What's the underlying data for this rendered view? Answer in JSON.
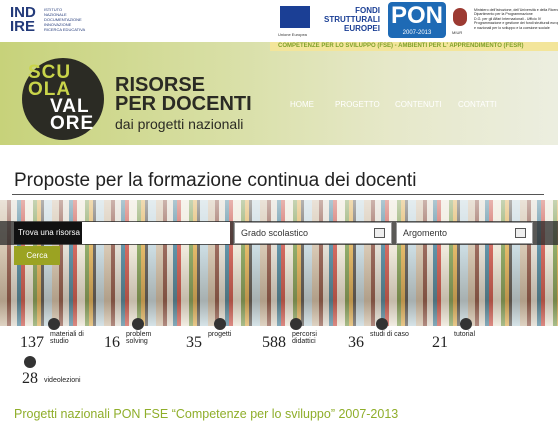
{
  "header": {
    "logo_top": "IND",
    "logo_bottom": "IRE",
    "institute_lines": [
      "ISTITUTO",
      "NAZIONALE",
      "DOCUMENTAZIONE",
      "INNOVAZIONE",
      "RICERCA EDUCATIVA"
    ],
    "eu_label": "Unione Europea",
    "fondi_lines": [
      "FONDI",
      "STRUTTURALI",
      "EUROPEI"
    ],
    "pon": "PON",
    "pon_years": "2007-2013",
    "miur": "MIUR",
    "ministry_lines": [
      "Ministero dell'Istruzione, dell'Università e della Ricerca",
      "Dipartimento per la Programmazione",
      "D.G. per gli Affari Internazionali - Ufficio IV",
      "Programmazione e gestione dei fondi strutturali europei",
      "e nazionali per lo sviluppo e la coesione sociale"
    ],
    "strip": "COMPETENZE PER LO SVILUPPO (FSE) - AMBIENTI PER L' APPRENDIMENTO (FESR)"
  },
  "brand": {
    "logo_lines": [
      "SCU",
      "OLA",
      "VAL",
      "ORE"
    ],
    "title_lines": [
      "RISORSE",
      "PER DOCENTI"
    ],
    "subtitle": "dai progetti nazionali"
  },
  "nav": [
    "HOME",
    "PROGETTO",
    "CONTENUTI",
    "CONTATTI"
  ],
  "page_title": "Proposte per la formazione continua dei docenti",
  "search": {
    "label": "Trova una risorsa",
    "grade": "Grado scolastico",
    "topic": "Argomento",
    "button": "Cerca"
  },
  "stats": [
    {
      "count": 137,
      "label": "materiali di studio"
    },
    {
      "count": 16,
      "label": "problem solving"
    },
    {
      "count": 35,
      "label": "progetti"
    },
    {
      "count": 588,
      "label": "percorsi didattici"
    },
    {
      "count": 36,
      "label": "studi di caso"
    },
    {
      "count": 21,
      "label": "tutorial"
    },
    {
      "count": 28,
      "label": "videolezioni"
    }
  ],
  "footer_heading": "Progetti nazionali PON FSE “Competenze per lo sviluppo” 2007-2013"
}
